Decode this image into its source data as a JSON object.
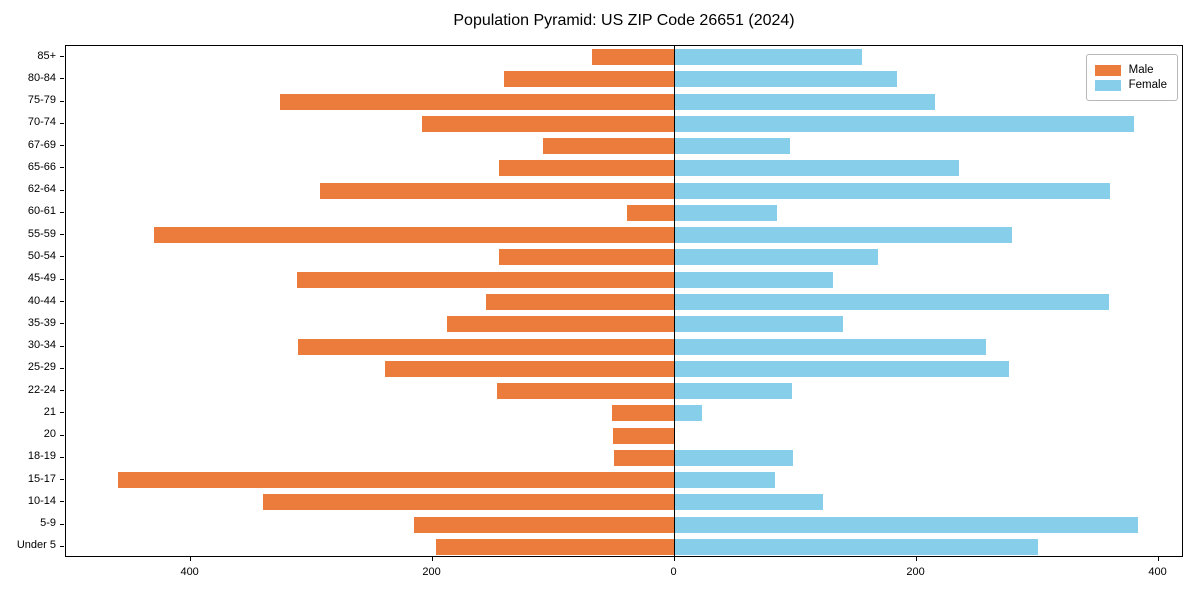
{
  "title": "Population Pyramid: US ZIP Code 26651 (2024)",
  "colors": {
    "male": "#ec7c3c",
    "female": "#87ceeb",
    "axis": "#000000"
  },
  "legend": {
    "items": [
      {
        "label": "Male"
      },
      {
        "label": "Female"
      }
    ]
  },
  "chart_data": {
    "type": "bar",
    "subtype": "population-pyramid",
    "title": "Population Pyramid: US ZIP Code 26651 (2024)",
    "categories": [
      "85+",
      "80-84",
      "75-79",
      "70-74",
      "67-69",
      "65-66",
      "62-64",
      "60-61",
      "55-59",
      "50-54",
      "45-49",
      "40-44",
      "35-39",
      "30-34",
      "25-29",
      "22-24",
      "21",
      "20",
      "18-19",
      "15-17",
      "10-14",
      "5-9",
      "Under 5"
    ],
    "series": [
      {
        "name": "Male",
        "side": "left",
        "color": "#ec7c3c",
        "values": [
          68,
          141,
          326,
          209,
          109,
          145,
          293,
          39,
          430,
          145,
          312,
          156,
          188,
          311,
          239,
          147,
          52,
          51,
          50,
          460,
          340,
          215,
          197
        ]
      },
      {
        "name": "Female",
        "side": "right",
        "color": "#87ceeb",
        "values": [
          155,
          184,
          215,
          380,
          95,
          235,
          360,
          85,
          279,
          168,
          131,
          359,
          139,
          257,
          276,
          97,
          23,
          0,
          98,
          83,
          123,
          383,
          300
        ]
      }
    ],
    "xlabel": "",
    "ylabel": "",
    "xlim": [
      -503,
      421
    ],
    "x_ticks": [
      {
        "value": -400,
        "label": "400"
      },
      {
        "value": -200,
        "label": "200"
      },
      {
        "value": 0,
        "label": "0"
      },
      {
        "value": 200,
        "label": "200"
      },
      {
        "value": 400,
        "label": "400"
      }
    ],
    "grid": false,
    "legend_position": "upper right"
  }
}
